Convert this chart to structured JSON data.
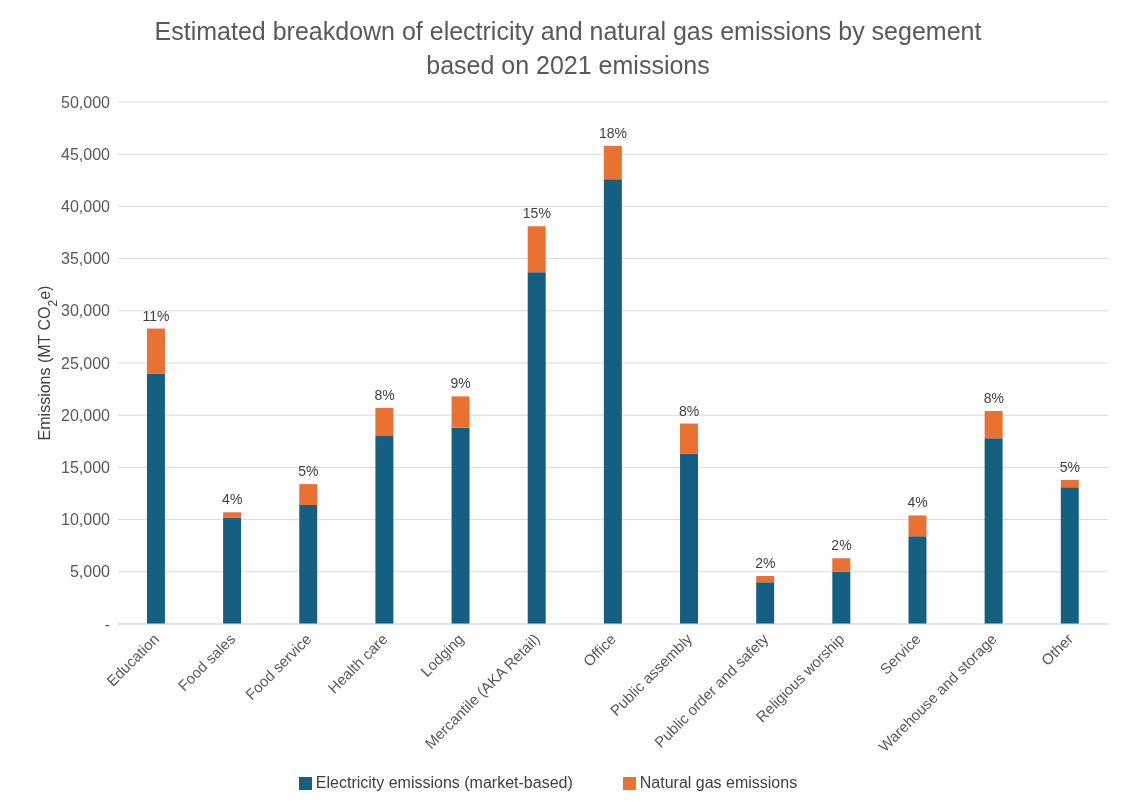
{
  "chart_data": {
    "type": "bar",
    "title": "Estimated breakdown of electricity and natural gas emissions by segement based on 2021 emissions",
    "ylabel": "Emissions (MT CO$_{2}$e)",
    "categories": [
      "Education",
      "Food sales",
      "Food service",
      "Health care",
      "Lodging",
      "Mercantile (AKA Retail)",
      "Office",
      "Public assembly",
      "Public order and safety",
      "Religious worship",
      "Service",
      "Warehouse and storage",
      "Other"
    ],
    "series": [
      {
        "name": "Electricity emissions (market-based)",
        "color": "#156082",
        "values": [
          24000,
          10200,
          11400,
          18000,
          18800,
          33700,
          42600,
          16300,
          4000,
          5000,
          8400,
          17800,
          13100
        ]
      },
      {
        "name": "Natural gas emissions",
        "color": "#e97132",
        "values": [
          4300,
          500,
          2000,
          2700,
          3000,
          4400,
          3200,
          2900,
          600,
          1300,
          2000,
          2600,
          700
        ]
      }
    ],
    "stacked": true,
    "annotations": [
      {
        "text": "11%",
        "x": "Education",
        "y": 28300
      },
      {
        "text": "4%",
        "x": "Food sales",
        "y": 10700
      },
      {
        "text": "5%",
        "x": "Food service",
        "y": 13400
      },
      {
        "text": "8%",
        "x": "Health care",
        "y": 20700
      },
      {
        "text": "9%",
        "x": "Lodging",
        "y": 21800
      },
      {
        "text": "15%",
        "x": "Mercantile (AKA Retail)",
        "y": 38100
      },
      {
        "text": "18%",
        "x": "Office",
        "y": 45800
      },
      {
        "text": "8%",
        "x": "Public assembly",
        "y": 19200
      },
      {
        "text": "2%",
        "x": "Public order and safety",
        "y": 4600
      },
      {
        "text": "2%",
        "x": "Religious worship",
        "y": 6300
      },
      {
        "text": "4%",
        "x": "Service",
        "y": 10400
      },
      {
        "text": "8%",
        "x": "Warehouse and storage",
        "y": 20400
      },
      {
        "text": "5%",
        "x": "Other",
        "y": 13800
      }
    ],
    "ylim": [
      0,
      50000
    ],
    "yticks": [
      {
        "value": 0,
        "label": "-"
      },
      {
        "value": 5000,
        "label": "5,000"
      },
      {
        "value": 10000,
        "label": "10,000"
      },
      {
        "value": 15000,
        "label": "15,000"
      },
      {
        "value": 20000,
        "label": "20,000"
      },
      {
        "value": 25000,
        "label": "25,000"
      },
      {
        "value": 30000,
        "label": "30,000"
      },
      {
        "value": 35000,
        "label": "35,000"
      },
      {
        "value": 40000,
        "label": "40,000"
      },
      {
        "value": 45000,
        "label": "45,000"
      },
      {
        "value": 50000,
        "label": "50,000"
      }
    ],
    "grid": "y",
    "legend": "bottom"
  }
}
